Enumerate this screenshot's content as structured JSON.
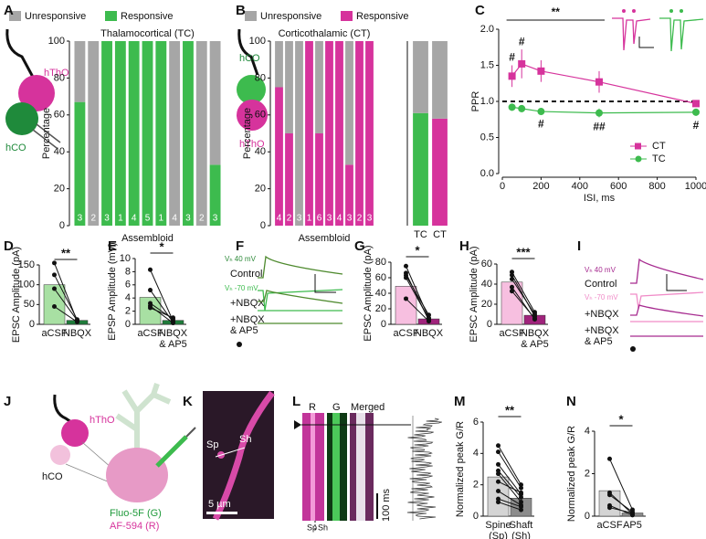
{
  "chart_data": [
    {
      "type": "stacked_bar",
      "panel": "A",
      "title": "Thalamocortical (TC)",
      "xlabel": "Assembloid",
      "ylabel": "Percentage",
      "categories": [
        null,
        null,
        null,
        null,
        null,
        null,
        null,
        null,
        null,
        null,
        null
      ],
      "counts": [
        3,
        2,
        3,
        1,
        4,
        5,
        1,
        4,
        3,
        2,
        3
      ],
      "ylim": [
        0,
        100
      ],
      "yticks": [
        0,
        20,
        40,
        60,
        80,
        100
      ],
      "series": [
        {
          "name": "Unresponsive",
          "color": "#a6a6a6",
          "values": [
            33,
            100,
            0,
            0,
            0,
            0,
            0,
            100,
            0,
            100,
            67
          ]
        },
        {
          "name": "Responsive",
          "color": "#3dbb4e",
          "values": [
            67,
            0,
            100,
            100,
            100,
            100,
            100,
            0,
            100,
            0,
            33
          ]
        }
      ]
    },
    {
      "type": "stacked_bar",
      "panel": "B",
      "title": "Corticothalamic (CT)",
      "xlabel": "Assembloid",
      "ylabel": "Percentage",
      "categories": [
        null,
        null,
        null,
        null,
        null,
        null,
        null,
        null,
        null,
        null
      ],
      "counts": [
        4,
        2,
        3,
        1,
        6,
        3,
        4,
        3,
        2,
        3
      ],
      "ylim": [
        0,
        100
      ],
      "yticks": [
        0,
        20,
        40,
        60,
        80,
        100
      ],
      "series": [
        {
          "name": "Unresponsive",
          "color": "#a6a6a6",
          "values": [
            25,
            50,
            100,
            0,
            50,
            0,
            0,
            67,
            0,
            0
          ]
        },
        {
          "name": "Responsive",
          "color": "#d6339c",
          "values": [
            75,
            50,
            0,
            100,
            50,
            100,
            100,
            33,
            100,
            100
          ]
        }
      ]
    },
    {
      "type": "stacked_bar",
      "categories": [
        "TC",
        "CT"
      ],
      "ylim": [
        0,
        100
      ],
      "series": [
        {
          "color": "#a6a6a6",
          "values": [
            39,
            42
          ]
        },
        {
          "colors": [
            "#3dbb4e",
            "#d6339c"
          ],
          "values": [
            61,
            58
          ]
        }
      ]
    },
    {
      "type": "line",
      "panel": "C",
      "xlabel": "ISI, ms",
      "ylabel": "PPR",
      "x": [
        50,
        100,
        200,
        500,
        1000
      ],
      "xlim": [
        0,
        1000
      ],
      "xticks": [
        0,
        200,
        400,
        600,
        800,
        1000
      ],
      "ylim": [
        0,
        2
      ],
      "yticks": [
        {
          "value": 0,
          "label": "0.0"
        },
        {
          "value": 0.5,
          "label": "0.5"
        },
        {
          "value": 1,
          "label": "1.0"
        },
        {
          "value": 1.5,
          "label": "1.5"
        },
        {
          "value": 2,
          "label": "2.0"
        }
      ],
      "reference": 1,
      "legend": "lower right",
      "series": [
        {
          "name": "CT",
          "color": "#d6339c",
          "marker": "square",
          "values": [
            1.35,
            1.52,
            1.42,
            1.27,
            0.97
          ],
          "errors": [
            0.15,
            0.2,
            0.15,
            0.15,
            0.04
          ]
        },
        {
          "name": "TC",
          "color": "#3dbb4e",
          "marker": "circle",
          "values": [
            0.92,
            0.9,
            0.86,
            0.84,
            0.85
          ],
          "errors": [
            0.05,
            0.05,
            0.04,
            0.06,
            0.05
          ]
        }
      ],
      "annotations": [
        "**",
        "#",
        "#",
        "#",
        "##",
        "#"
      ]
    },
    {
      "type": "bar",
      "panel": "D",
      "ylabel": "EPSC Amplitude (pA)",
      "categories": [
        "aCSF",
        "NBQX"
      ],
      "values": [
        100,
        10
      ],
      "colors": [
        "#a8e0a3",
        "#1e7b3a"
      ],
      "ylim": [
        0,
        150
      ],
      "yticks": [
        0,
        50,
        100,
        150
      ],
      "pairs": [
        [
          155,
          8
        ],
        [
          125,
          12
        ],
        [
          90,
          10
        ],
        [
          45,
          6
        ]
      ],
      "annotation": "**"
    },
    {
      "type": "bar",
      "panel": "E",
      "ylabel": "EPSP Amplitude (mV)",
      "categories": [
        "aCSF",
        "NBQX & AP5"
      ],
      "values": [
        4.1,
        0.6
      ],
      "colors": [
        "#a8e0a3",
        "#1e7b3a"
      ],
      "ylim": [
        0,
        10
      ],
      "yticks": [
        0,
        2,
        4,
        6,
        8,
        10
      ],
      "pairs": [
        [
          8.3,
          0.5
        ],
        [
          5.2,
          0.3
        ],
        [
          3.2,
          0.8
        ],
        [
          2.8,
          0.2
        ],
        [
          2.5,
          1.0
        ]
      ],
      "annotation": "*"
    },
    {
      "type": "bar",
      "panel": "G",
      "ylabel": "EPSC Amplitude (pA)",
      "categories": [
        "aCSF",
        "NBQX"
      ],
      "values": [
        49,
        7
      ],
      "colors": [
        "#f7bfe0",
        "#a0237c"
      ],
      "ylim": [
        0,
        80
      ],
      "yticks": [
        0,
        20,
        40,
        60,
        80
      ],
      "pairs": [
        [
          75,
          8
        ],
        [
          66,
          5
        ],
        [
          63,
          12
        ],
        [
          60,
          7
        ],
        [
          33,
          4
        ]
      ],
      "annotation": "*"
    },
    {
      "type": "bar",
      "panel": "H",
      "ylabel": "EPSC Amplitude (pA)",
      "categories": [
        "aCSF",
        "NBQX & AP5"
      ],
      "values": [
        42,
        9
      ],
      "colors": [
        "#f7bfe0",
        "#a0237c"
      ],
      "ylim": [
        0,
        60
      ],
      "yticks": [
        0,
        20,
        40,
        60
      ],
      "pairs": [
        [
          52,
          12
        ],
        [
          49,
          8
        ],
        [
          45,
          10
        ],
        [
          37,
          5
        ],
        [
          33,
          6
        ]
      ],
      "annotation": "***"
    },
    {
      "type": "bar",
      "panel": "M",
      "ylabel": "Normalized peak G/R",
      "categories": [
        "Spine (Sp)",
        "Shaft (Sh)"
      ],
      "values": [
        2.5,
        1.15
      ],
      "colors": [
        "#d4d4d4",
        "#8c8c8c"
      ],
      "ylim": [
        0,
        6
      ],
      "yticks": [
        0,
        2,
        4,
        6
      ],
      "pairs": [
        [
          4.5,
          2.0
        ],
        [
          4.1,
          1.8
        ],
        [
          3.3,
          1.4
        ],
        [
          2.9,
          1.2
        ],
        [
          2.7,
          0.9
        ],
        [
          2.2,
          1.5
        ],
        [
          1.6,
          0.7
        ],
        [
          1.1,
          0.6
        ],
        [
          0.9,
          0.4
        ]
      ],
      "annotation": "**"
    },
    {
      "type": "bar",
      "panel": "N",
      "ylabel": "Normalized peak G/R",
      "categories": [
        "aCSF",
        "AP5"
      ],
      "values": [
        1.2,
        0.15
      ],
      "colors": [
        "#d4d4d4",
        "#8c8c8c"
      ],
      "ylim": [
        0,
        4
      ],
      "yticks": [
        0,
        2,
        4
      ],
      "pairs": [
        [
          2.7,
          0.3
        ],
        [
          1.1,
          0.1
        ],
        [
          1.0,
          0.2
        ],
        [
          0.5,
          0.05
        ],
        [
          0.4,
          0.15
        ]
      ],
      "annotation": "*"
    }
  ],
  "figures": {
    "A": {
      "labels": [
        "hThO",
        "hCO"
      ]
    },
    "B": {
      "labels": [
        "hCO",
        "hThO"
      ]
    },
    "F": {
      "letter": "F",
      "labels": [
        "Vₕ 40 mV",
        "Control",
        "Vₕ -70 mV",
        "+NBQX",
        "+NBQX",
        "& AP5"
      ]
    },
    "I": {
      "letter": "I",
      "labels": [
        "Vₕ 40 mV",
        "Control",
        "Vₕ -70 mV",
        "+NBQX",
        "+NBQX",
        "& AP5"
      ]
    },
    "J": {
      "letter": "J",
      "labels": [
        "hThO",
        "hCO",
        "Fluo-5F (G)",
        "AF-594 (R)"
      ]
    },
    "K": {
      "letter": "K",
      "labels": [
        "Sp",
        "Sh",
        "5 µm"
      ]
    },
    "L": {
      "letter": "L",
      "labels": [
        "R",
        "G",
        "Merged",
        "100 ms",
        "Sp",
        "Sh"
      ]
    }
  }
}
